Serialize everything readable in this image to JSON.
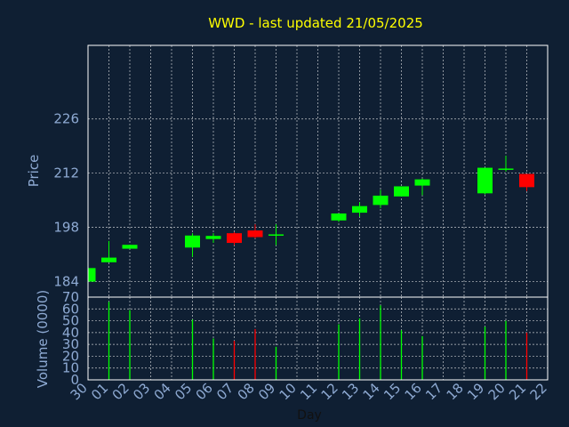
{
  "title": "WWD - last updated 21/05/2025",
  "colors": {
    "background": "#0f1f33",
    "title": "#ffff00",
    "axis_text": "#8eaad3",
    "frame": "#ffffff",
    "grid": "#ffffff",
    "up": "#00ff00",
    "down": "#ff0000"
  },
  "chart_data": [
    {
      "type": "candlestick",
      "ylabel": "Price",
      "ylim": [
        180,
        245
      ],
      "yticks": [
        184,
        198,
        212,
        226
      ],
      "grid": true,
      "categories": [
        "30",
        "01",
        "02",
        "03",
        "04",
        "05",
        "06",
        "07",
        "08",
        "09",
        "10",
        "11",
        "12",
        "13",
        "14",
        "15",
        "16",
        "17",
        "18",
        "19",
        "20",
        "21",
        "22"
      ],
      "candles": [
        {
          "day": "30",
          "open": 184.0,
          "close": 187.5,
          "high": 187.5,
          "low": 184.0
        },
        {
          "day": "01",
          "open": 189.0,
          "close": 190.2,
          "high": 194.5,
          "low": 189.0
        },
        {
          "day": "02",
          "open": 192.5,
          "close": 193.5,
          "high": 193.5,
          "low": 192.5
        },
        {
          "day": "05",
          "open": 192.8,
          "close": 195.9,
          "high": 196.5,
          "low": 190.4
        },
        {
          "day": "06",
          "open": 195.0,
          "close": 195.8,
          "high": 196.5,
          "low": 194.0
        },
        {
          "day": "07",
          "open": 196.5,
          "close": 194.0,
          "high": 196.8,
          "low": 193.4
        },
        {
          "day": "08",
          "open": 197.2,
          "close": 195.5,
          "high": 198.8,
          "low": 195.2
        },
        {
          "day": "09",
          "open": 196.0,
          "close": 196.2,
          "high": 198.8,
          "low": 193.4
        },
        {
          "day": "12",
          "open": 199.8,
          "close": 201.6,
          "high": 201.6,
          "low": 199.4
        },
        {
          "day": "13",
          "open": 201.8,
          "close": 203.5,
          "high": 204.5,
          "low": 200.8
        },
        {
          "day": "14",
          "open": 203.8,
          "close": 206.2,
          "high": 207.7,
          "low": 203.0
        },
        {
          "day": "15",
          "open": 206.0,
          "close": 208.6,
          "high": 208.6,
          "low": 206.0
        },
        {
          "day": "16",
          "open": 208.8,
          "close": 210.4,
          "high": 210.6,
          "low": 206.3
        },
        {
          "day": "19",
          "open": 206.8,
          "close": 213.4,
          "high": 213.4,
          "low": 206.5
        },
        {
          "day": "20",
          "open": 213.0,
          "close": 213.2,
          "high": 216.5,
          "low": 212.4
        },
        {
          "day": "21",
          "open": 211.8,
          "close": 208.4,
          "high": 211.8,
          "low": 207.4
        }
      ]
    },
    {
      "type": "bar",
      "ylabel": "Volume (0000)",
      "xlabel": "Day",
      "ylim": [
        0,
        70
      ],
      "yticks": [
        0,
        10,
        20,
        30,
        40,
        50,
        60,
        70
      ],
      "grid": true,
      "bars": [
        {
          "day": "01",
          "value": 66,
          "dir": "up"
        },
        {
          "day": "02",
          "value": 59,
          "dir": "up"
        },
        {
          "day": "05",
          "value": 51,
          "dir": "up"
        },
        {
          "day": "06",
          "value": 35,
          "dir": "up"
        },
        {
          "day": "07",
          "value": 33,
          "dir": "down"
        },
        {
          "day": "08",
          "value": 43,
          "dir": "down"
        },
        {
          "day": "09",
          "value": 28,
          "dir": "up"
        },
        {
          "day": "12",
          "value": 47,
          "dir": "up"
        },
        {
          "day": "13",
          "value": 52,
          "dir": "up"
        },
        {
          "day": "14",
          "value": 63,
          "dir": "up"
        },
        {
          "day": "15",
          "value": 42,
          "dir": "up"
        },
        {
          "day": "16",
          "value": 37,
          "dir": "up"
        },
        {
          "day": "19",
          "value": 45,
          "dir": "up"
        },
        {
          "day": "20",
          "value": 50,
          "dir": "up"
        },
        {
          "day": "21",
          "value": 40,
          "dir": "down"
        }
      ]
    }
  ]
}
